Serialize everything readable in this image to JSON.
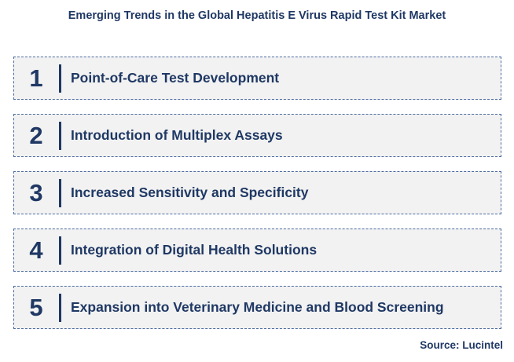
{
  "title": "Emerging Trends in the Global Hepatitis E Virus Rapid Test Kit Market",
  "items": [
    {
      "number": "1",
      "label": "Point-of-Care Test Development"
    },
    {
      "number": "2",
      "label": "Introduction of Multiplex Assays"
    },
    {
      "number": "3",
      "label": "Increased Sensitivity and Specificity"
    },
    {
      "number": "4",
      "label": "Integration of Digital Health Solutions"
    },
    {
      "number": "5",
      "label": "Expansion into Veterinary Medicine and Blood Screening"
    }
  ],
  "source": "Source: Lucintel",
  "colors": {
    "text": "#1f3864",
    "box_background": "#f2f2f2",
    "box_border": "#4a6aa0"
  }
}
